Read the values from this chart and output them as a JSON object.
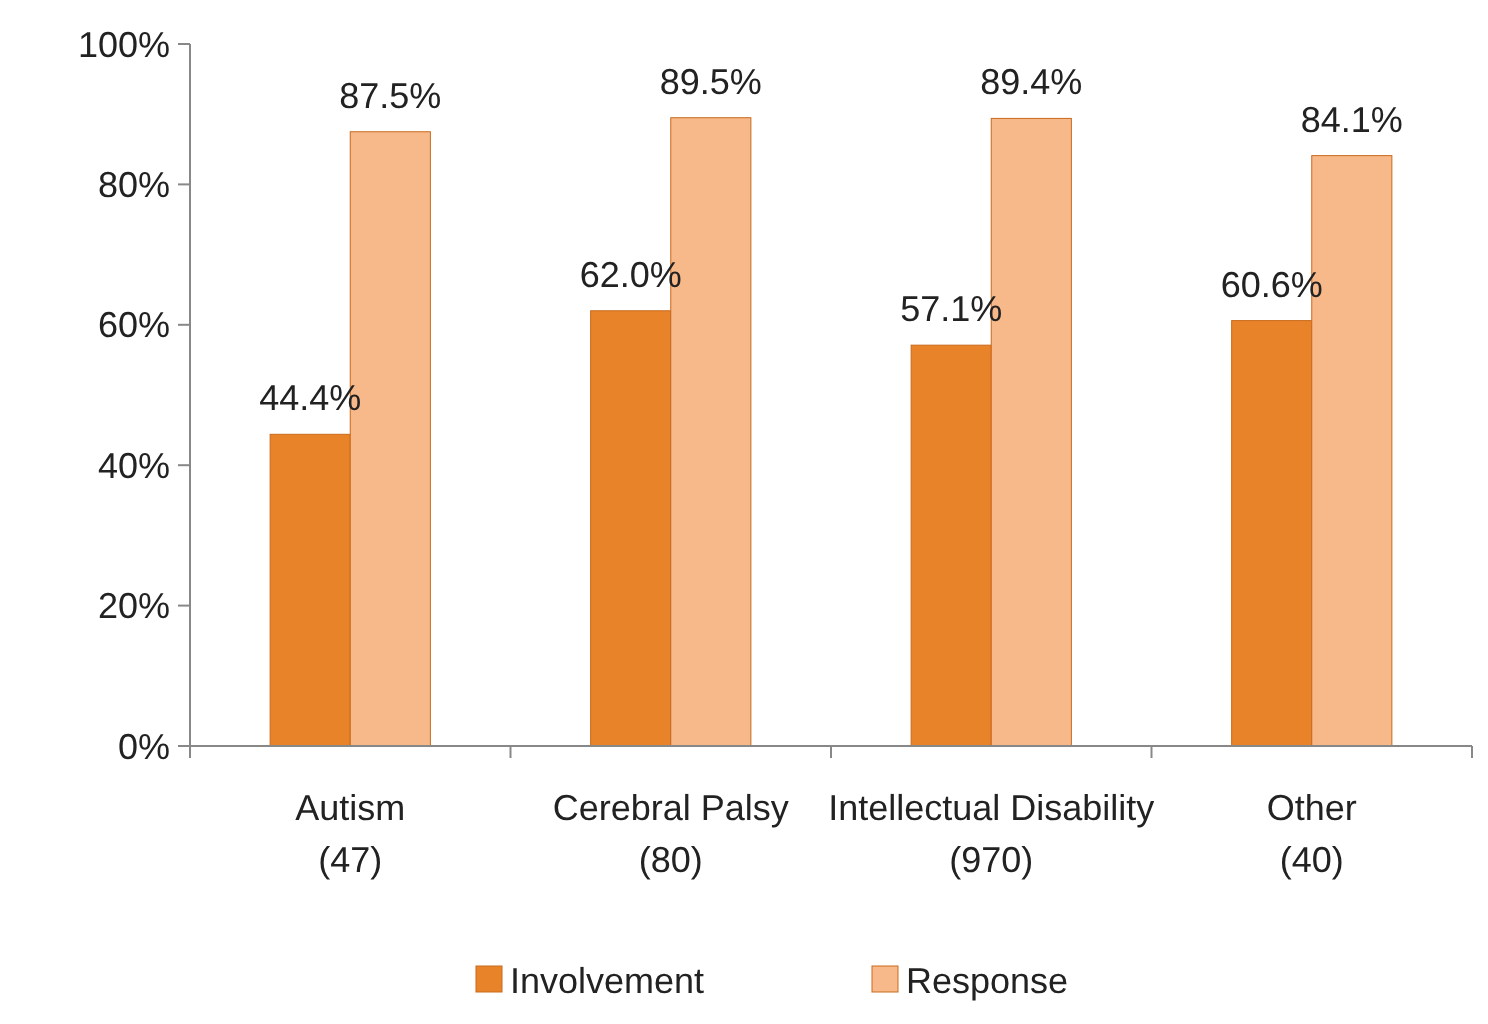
{
  "chart_data": {
    "type": "bar",
    "categories": [
      "Autism (47)",
      "Cerebral Palsy (80)",
      "Intellectual Disability (970)",
      "Other (40)"
    ],
    "series": [
      {
        "name": "Involvement",
        "color": "#e8832a",
        "values": [
          44.4,
          62.0,
          57.1,
          60.6
        ],
        "value_labels": [
          "44.4%",
          "62.0%",
          "57.1%",
          "60.6%"
        ]
      },
      {
        "name": "Response",
        "color": "#f7b98a",
        "values": [
          87.5,
          89.5,
          89.4,
          84.1
        ],
        "value_labels": [
          "87.5%",
          "89.5%",
          "89.4%",
          "84.1%"
        ]
      }
    ],
    "ylim": [
      0,
      100
    ],
    "yticks": [
      {
        "value": 0,
        "label": "0%"
      },
      {
        "value": 20,
        "label": "20%"
      },
      {
        "value": 40,
        "label": "40%"
      },
      {
        "value": 60,
        "label": "60%"
      },
      {
        "value": 80,
        "label": "80%"
      },
      {
        "value": 100,
        "label": "100%"
      }
    ],
    "grid": false,
    "legend": "bottom"
  }
}
